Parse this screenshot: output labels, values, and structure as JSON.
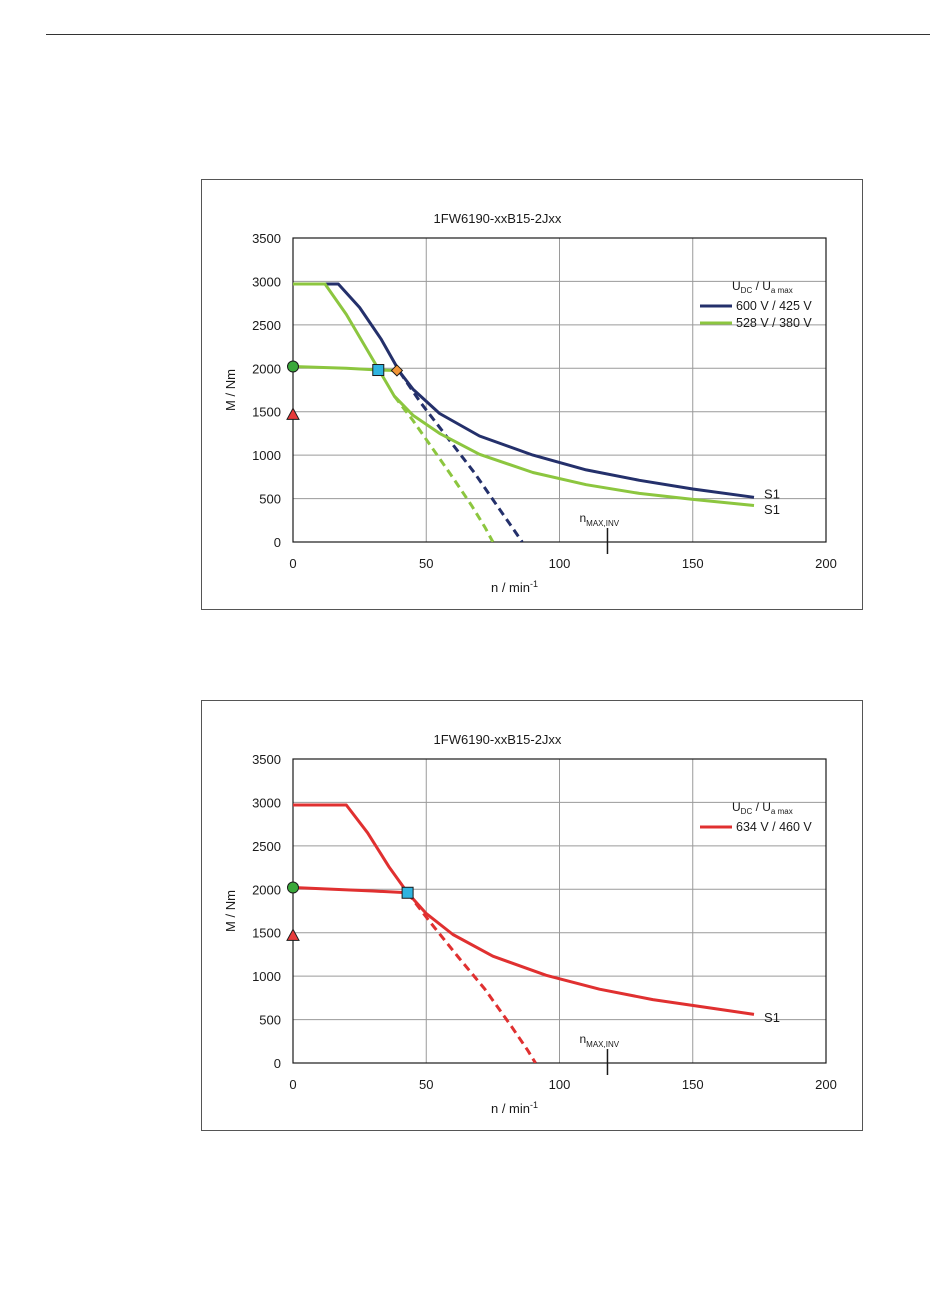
{
  "chart_data": [
    {
      "type": "line",
      "title": "1FW6190-xxB15-2Jxx",
      "xlabel_main": "n / min",
      "xlabel_sup": "-1",
      "ylabel": "M / Nm",
      "xlim": [
        0,
        200
      ],
      "ylim": [
        0,
        3500
      ],
      "xticks": [
        "0",
        "50",
        "100",
        "150",
        "200"
      ],
      "yticks": [
        "0",
        "500",
        "1000",
        "1500",
        "2000",
        "2500",
        "3000",
        "3500"
      ],
      "grid": true,
      "legend_placement": "top-right",
      "legend_title": {
        "u1": "U",
        "sub1": "DC",
        "sep": "/",
        "u2": "U",
        "sub2": "a max"
      },
      "series": [
        {
          "name": "600 V / 425 V",
          "color": "#24306b",
          "solid": [
            [
              0,
              2970
            ],
            [
              17,
              2970
            ],
            [
              25,
              2700
            ],
            [
              33,
              2340
            ],
            [
              40,
              1960
            ],
            [
              45,
              1760
            ],
            [
              55,
              1480
            ],
            [
              70,
              1220
            ],
            [
              90,
              1000
            ],
            [
              110,
              830
            ],
            [
              130,
              710
            ],
            [
              150,
              610
            ],
            [
              173,
              515
            ]
          ],
          "dashed": [
            [
              40,
              1960
            ],
            [
              48,
              1600
            ],
            [
              58,
              1200
            ],
            [
              68,
              800
            ],
            [
              77,
              400
            ],
            [
              82,
              180
            ],
            [
              86,
              0
            ]
          ],
          "end_label": "S1",
          "end_label_y": 560
        },
        {
          "name": "528 V / 380 V",
          "color": "#8cc63f",
          "solid": [
            [
              0,
              2970
            ],
            [
              12,
              2970
            ],
            [
              20,
              2620
            ],
            [
              30,
              2100
            ],
            [
              38,
              1680
            ],
            [
              45,
              1460
            ],
            [
              55,
              1250
            ],
            [
              70,
              1010
            ],
            [
              90,
              800
            ],
            [
              110,
              660
            ],
            [
              130,
              560
            ],
            [
              150,
              490
            ],
            [
              173,
              420
            ]
          ],
          "dashed": [
            [
              38,
              1680
            ],
            [
              45,
              1400
            ],
            [
              53,
              1050
            ],
            [
              60,
              740
            ],
            [
              67,
              420
            ],
            [
              72,
              170
            ],
            [
              75,
              0
            ]
          ],
          "end_label": "S1",
          "end_label_y": 380
        }
      ],
      "shared_curve": {
        "color": "#8cc63f",
        "points": [
          [
            0,
            2020
          ],
          [
            10,
            2010
          ],
          [
            20,
            2000
          ],
          [
            32,
            1980
          ],
          [
            39,
            1975
          ]
        ]
      },
      "nmax_label": {
        "main": "n",
        "sub": "MAX,INV",
        "x": 118
      },
      "markers": [
        {
          "shape": "triangle",
          "x": 0,
          "y": 1470,
          "color": "#e63a3a"
        },
        {
          "shape": "circle",
          "x": 0,
          "y": 2020,
          "color": "#3aa83a"
        },
        {
          "shape": "square",
          "x": 32,
          "y": 1980,
          "color": "#2fb4e0"
        },
        {
          "shape": "diamond",
          "x": 39,
          "y": 1975,
          "color": "#f29537"
        }
      ]
    },
    {
      "type": "line",
      "title": "1FW6190-xxB15-2Jxx",
      "xlabel_main": "n / min",
      "xlabel_sup": "-1",
      "ylabel": "M / Nm",
      "xlim": [
        0,
        200
      ],
      "ylim": [
        0,
        3500
      ],
      "xticks": [
        "0",
        "50",
        "100",
        "150",
        "200"
      ],
      "yticks": [
        "0",
        "500",
        "1000",
        "1500",
        "2000",
        "2500",
        "3000",
        "3500"
      ],
      "grid": true,
      "legend_placement": "top-right",
      "legend_title": {
        "u1": "U",
        "sub1": "DC",
        "sep": "/",
        "u2": "U",
        "sub2": "a max"
      },
      "series": [
        {
          "name": "634 V / 460 V",
          "color": "#e03030",
          "solid": [
            [
              0,
              2970
            ],
            [
              20,
              2970
            ],
            [
              28,
              2650
            ],
            [
              36,
              2260
            ],
            [
              43,
              1960
            ],
            [
              50,
              1720
            ],
            [
              60,
              1480
            ],
            [
              75,
              1230
            ],
            [
              95,
              1010
            ],
            [
              115,
              850
            ],
            [
              135,
              730
            ],
            [
              155,
              640
            ],
            [
              173,
              560
            ]
          ],
          "dashed": [
            [
              43,
              1960
            ],
            [
              52,
              1600
            ],
            [
              62,
              1220
            ],
            [
              72,
              850
            ],
            [
              82,
              420
            ],
            [
              88,
              150
            ],
            [
              91,
              0
            ]
          ],
          "end_label": "S1",
          "end_label_y": 530
        }
      ],
      "shared_curve": {
        "color": "#e03030",
        "points": [
          [
            0,
            2020
          ],
          [
            15,
            2000
          ],
          [
            30,
            1980
          ],
          [
            43,
            1960
          ]
        ]
      },
      "nmax_label": {
        "main": "n",
        "sub": "MAX,INV",
        "x": 118
      },
      "markers": [
        {
          "shape": "triangle",
          "x": 0,
          "y": 1470,
          "color": "#e63a3a"
        },
        {
          "shape": "circle",
          "x": 0,
          "y": 2020,
          "color": "#3aa83a"
        },
        {
          "shape": "square",
          "x": 43,
          "y": 1960,
          "color": "#2fb4e0"
        }
      ]
    }
  ]
}
